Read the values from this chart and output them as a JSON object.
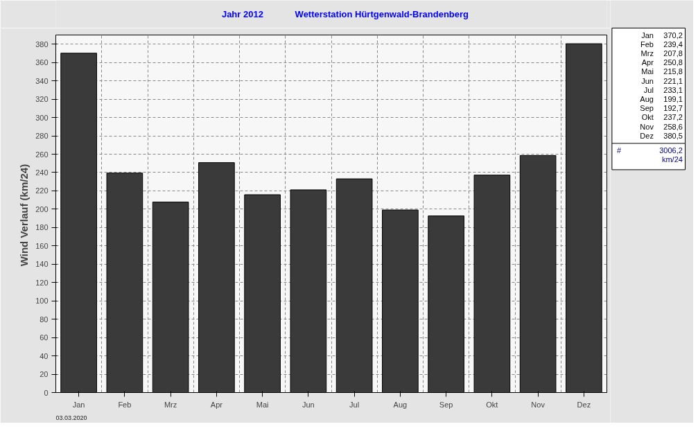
{
  "chart_data": {
    "type": "bar",
    "title": "Jahr  2012",
    "subtitle": "Wetterstation Hürtgenwald-Brandenberg",
    "ylabel": "Wind Verlauf  (km/24)",
    "categories": [
      "Jan",
      "Feb",
      "Mrz",
      "Apr",
      "Mai",
      "Jun",
      "Jul",
      "Aug",
      "Sep",
      "Okt",
      "Nov",
      "Dez"
    ],
    "values": [
      370.2,
      239.4,
      207.8,
      250.8,
      215.8,
      221.1,
      233.1,
      199.1,
      192.7,
      237.2,
      258.6,
      380.5
    ],
    "color": "#3a3a3a",
    "ylim": [
      0,
      390
    ],
    "yticks": [
      0,
      20,
      40,
      60,
      80,
      100,
      120,
      140,
      160,
      180,
      200,
      220,
      240,
      260,
      280,
      300,
      320,
      340,
      360,
      380
    ],
    "grid": true,
    "annotations": [
      "370,2",
      "239,4",
      "207,8",
      "250,8",
      "215,8",
      "221,1",
      "233,1",
      "199,1",
      "192,7",
      "237,2",
      "258,6",
      "380,5",
      "#",
      "3006,2",
      "km/24",
      "03.03.2020"
    ]
  }
}
